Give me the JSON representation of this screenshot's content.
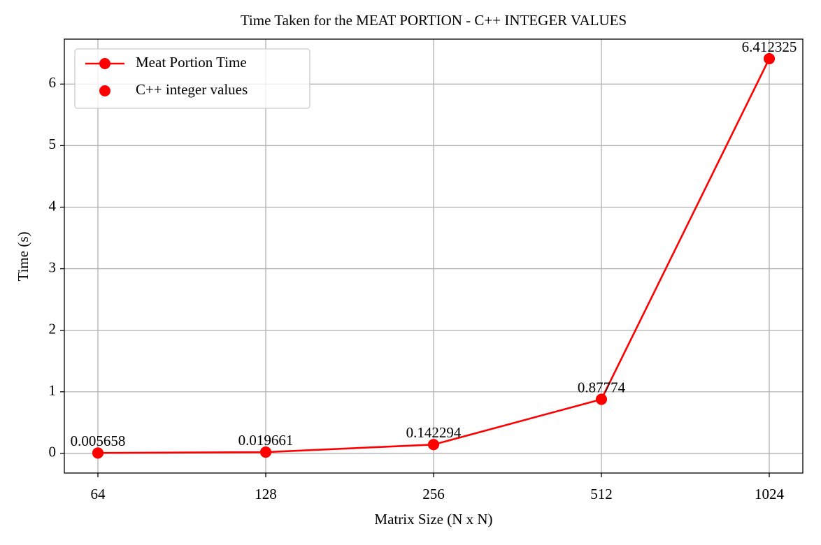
{
  "chart_data": {
    "type": "line",
    "title": "Time Taken for the MEAT PORTION - C++ INTEGER VALUES",
    "xlabel": "Matrix Size (N x N)",
    "ylabel": "Time (s)",
    "categories": [
      "64",
      "128",
      "256",
      "512",
      "1024"
    ],
    "series": [
      {
        "name": "Meat Portion Time",
        "color": "#ff0000",
        "style": "line-marker",
        "values": [
          0.005658,
          0.019661,
          0.142294,
          0.87774,
          6.412325
        ]
      },
      {
        "name": "C++ integer values",
        "color": "#ff0000",
        "style": "marker",
        "values": [
          0.005658,
          0.019661,
          0.142294,
          0.87774,
          6.412325
        ]
      }
    ],
    "ylim": [
      -0.32,
      6.73
    ],
    "yticks": [
      0,
      1,
      2,
      3,
      4,
      5,
      6
    ],
    "grid": true,
    "legend": "upper left"
  }
}
